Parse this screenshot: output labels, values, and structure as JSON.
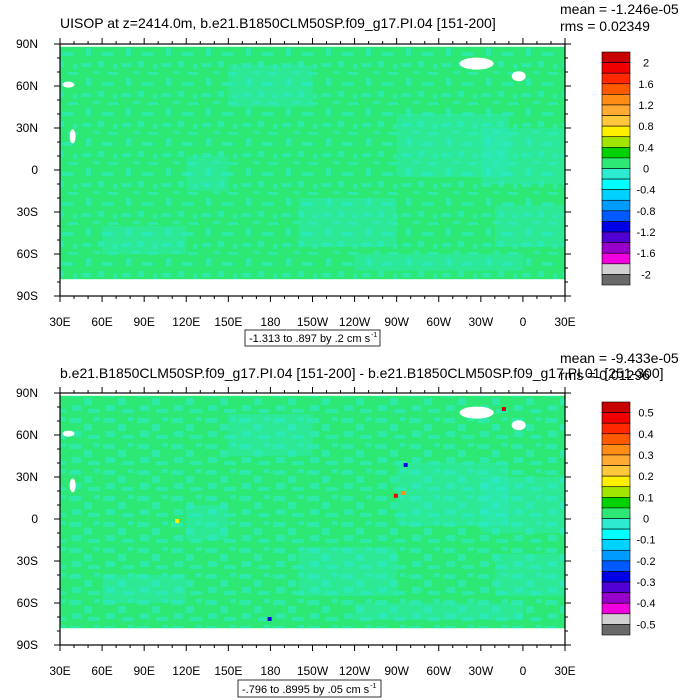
{
  "colors": {
    "ocean_base": "#2EE876",
    "ocean_light": "#2CEBD0",
    "land": "#FFFFFF",
    "frame": "#000000"
  },
  "chart_data": [
    {
      "type": "heatmap",
      "title": "UISOP at z=2414.0m, b.e21.B1850CLM50SP.f09_g17.PI.04 [151-200]",
      "mean_label": "mean = -1.246e-05",
      "rms_label": "rms = 0.02349",
      "range_label": "-1.313 to .897 by .2 cm s",
      "range_sup": "-1",
      "xticks": [
        "30E",
        "60E",
        "90E",
        "120E",
        "150E",
        "180",
        "150W",
        "120W",
        "90W",
        "60W",
        "30W",
        "0",
        "30E"
      ],
      "yticks": [
        "90N",
        "60N",
        "30N",
        "0",
        "30S",
        "60S",
        "90S"
      ],
      "xlim": [
        30,
        390
      ],
      "ylim": [
        -90,
        90
      ],
      "colorbar_labels": [
        "2",
        "1.6",
        "1.2",
        "0.8",
        "0.4",
        "0",
        "-0.4",
        "-0.8",
        "-1.2",
        "-1.6",
        "-2"
      ],
      "colorbar_colors": [
        "#C80000",
        "#F00000",
        "#FF2800",
        "#FF5A00",
        "#FF8C14",
        "#FFAA32",
        "#FFC83C",
        "#FFF000",
        "#A0E600",
        "#00D200",
        "#2EE876",
        "#2CEBD0",
        "#00FFFF",
        "#00D2FF",
        "#009BFF",
        "#005AFF",
        "#0000E6",
        "#5000D2",
        "#9600C8",
        "#F000DC",
        "#D2D2D2",
        "#696969"
      ]
    },
    {
      "type": "heatmap",
      "title": "b.e21.B1850CLM50SP.f09_g17.PI.04 [151-200] - b.e21.B1850CLM50SP.f09_g17.PI.01 [251-300]",
      "mean_label": "mean = -9.433e-05",
      "rms_label": "rms = 0.01296",
      "range_label": "-.796 to .8995 by .05 cm s",
      "range_sup": "-1",
      "xticks": [
        "30E",
        "60E",
        "90E",
        "120E",
        "150E",
        "180",
        "150W",
        "120W",
        "90W",
        "60W",
        "30W",
        "0",
        "30E"
      ],
      "yticks": [
        "90N",
        "60N",
        "30N",
        "0",
        "30S",
        "60S",
        "90S"
      ],
      "xlim": [
        30,
        390
      ],
      "ylim": [
        -90,
        90
      ],
      "colorbar_labels": [
        "0.5",
        "0.4",
        "0.3",
        "0.2",
        "0.1",
        "0",
        "-0.1",
        "-0.2",
        "-0.3",
        "-0.4",
        "-0.5"
      ],
      "colorbar_colors": [
        "#C80000",
        "#F00000",
        "#FF2800",
        "#FF5A00",
        "#FF8C14",
        "#FFAA32",
        "#FFC83C",
        "#FFF000",
        "#A0E600",
        "#00D200",
        "#2EE876",
        "#2CEBD0",
        "#00FFFF",
        "#00D2FF",
        "#009BFF",
        "#005AFF",
        "#0000E6",
        "#5000D2",
        "#9600C8",
        "#F000DC",
        "#D2D2D2",
        "#696969"
      ]
    }
  ]
}
